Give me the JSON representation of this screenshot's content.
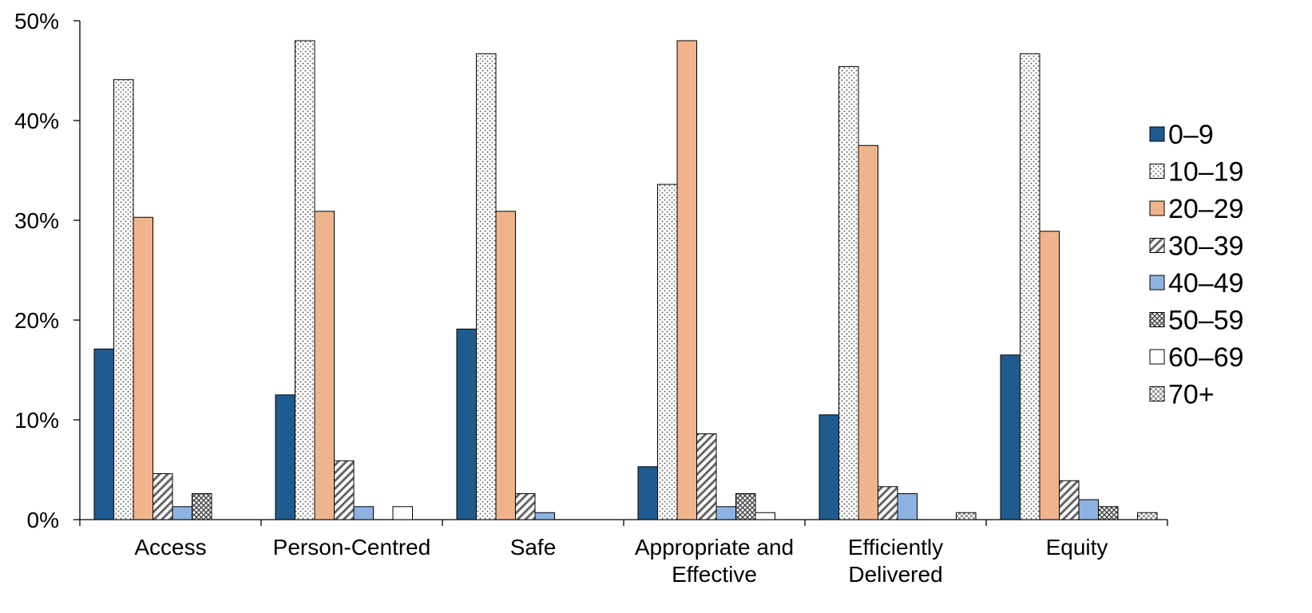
{
  "chart_data": {
    "type": "bar",
    "title": "",
    "xlabel": "",
    "ylabel": "",
    "ylim": [
      0,
      50
    ],
    "y_ticks": [
      "0%",
      "10%",
      "20%",
      "30%",
      "40%",
      "50%"
    ],
    "grid": false,
    "legend_position": "right",
    "categories": [
      [
        "Access"
      ],
      [
        "Person-Centred"
      ],
      [
        "Safe"
      ],
      [
        "Appropriate and",
        "Effective"
      ],
      [
        "Efficiently",
        "Delivered"
      ],
      [
        "Equity"
      ]
    ],
    "series": [
      {
        "name": "0–9",
        "values": [
          17.1,
          12.5,
          19.1,
          5.3,
          10.5,
          16.5
        ],
        "color": "#1f5b8e",
        "pattern": "solid"
      },
      {
        "name": "10–19",
        "values": [
          44.1,
          48.0,
          46.7,
          33.6,
          45.4,
          46.7
        ],
        "color": "#ffffff",
        "pattern": "dots"
      },
      {
        "name": "20–29",
        "values": [
          30.3,
          30.9,
          30.9,
          48.0,
          37.5,
          28.9
        ],
        "color": "#f0b48c",
        "pattern": "solid"
      },
      {
        "name": "30–39",
        "values": [
          4.6,
          5.9,
          2.6,
          8.6,
          3.3,
          3.9
        ],
        "color": "#ffffff",
        "pattern": "diagonal"
      },
      {
        "name": "40–49",
        "values": [
          1.3,
          1.3,
          0.7,
          1.3,
          2.6,
          2.0
        ],
        "color": "#8db3e2",
        "pattern": "solid"
      },
      {
        "name": "50–59",
        "values": [
          2.6,
          0,
          0,
          2.6,
          0,
          1.3
        ],
        "color": "#ffffff",
        "pattern": "crosshatch"
      },
      {
        "name": "60–69",
        "values": [
          0,
          1.3,
          0,
          0.7,
          0,
          0
        ],
        "color": "#ffffff",
        "pattern": "none"
      },
      {
        "name": "70+",
        "values": [
          0,
          0,
          0,
          0,
          0.7,
          0.7
        ],
        "color": "#ffffff",
        "pattern": "checker"
      }
    ]
  }
}
